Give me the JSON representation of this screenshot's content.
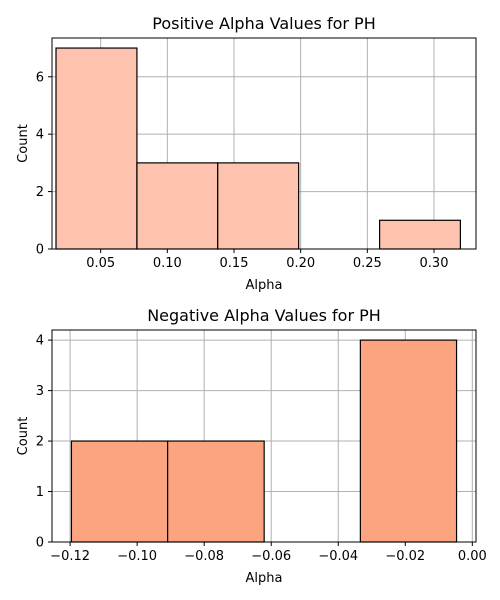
{
  "chart_data": [
    {
      "type": "bar",
      "title": "Positive Alpha Values for PH",
      "xlabel": "Alpha",
      "ylabel": "Count",
      "color": "#fdc3ae",
      "grid": true,
      "xlim": [
        0.0135,
        0.3315
      ],
      "ylim": [
        0,
        7.35
      ],
      "xticks": [
        0.05,
        0.1,
        0.15,
        0.2,
        0.25,
        0.3
      ],
      "xtick_labels": [
        "0.05",
        "0.10",
        "0.15",
        "0.20",
        "0.25",
        "0.30"
      ],
      "yticks": [
        0,
        2,
        4,
        6
      ],
      "ytick_labels": [
        "0",
        "2",
        "4",
        "6"
      ],
      "bins": [
        {
          "x0": 0.0165,
          "x1": 0.0772,
          "count": 7
        },
        {
          "x0": 0.0772,
          "x1": 0.1378,
          "count": 3
        },
        {
          "x0": 0.1378,
          "x1": 0.1985,
          "count": 3
        },
        {
          "x0": 0.1985,
          "x1": 0.2592,
          "count": 0
        },
        {
          "x0": 0.2592,
          "x1": 0.3198,
          "count": 1
        }
      ]
    },
    {
      "type": "bar",
      "title": "Negative Alpha Values for PH",
      "xlabel": "Alpha",
      "ylabel": "Count",
      "color": "#fca480",
      "grid": true,
      "xlim": [
        -0.1254,
        0.0011
      ],
      "ylim": [
        0,
        4.2
      ],
      "xticks": [
        -0.12,
        -0.1,
        -0.08,
        -0.06,
        -0.04,
        -0.02,
        0.0
      ],
      "xtick_labels": [
        "−0.12",
        "−0.10",
        "−0.08",
        "−0.06",
        "−0.04",
        "−0.02",
        "0.00"
      ],
      "yticks": [
        0,
        1,
        2,
        3,
        4
      ],
      "ytick_labels": [
        "0",
        "1",
        "2",
        "3",
        "4"
      ],
      "bins": [
        {
          "x0": -0.1196,
          "x1": -0.0909,
          "count": 2
        },
        {
          "x0": -0.0909,
          "x1": -0.0621,
          "count": 2
        },
        {
          "x0": -0.0621,
          "x1": -0.0334,
          "count": 0
        },
        {
          "x0": -0.0334,
          "x1": -0.0047,
          "count": 4
        }
      ]
    }
  ]
}
